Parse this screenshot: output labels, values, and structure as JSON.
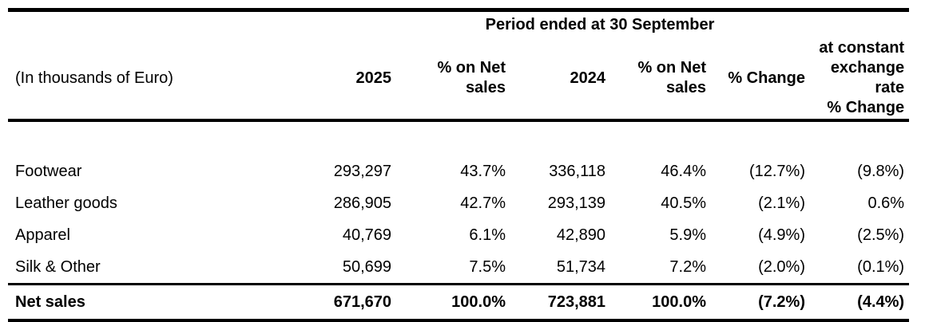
{
  "table": {
    "period_header": "Period ended at 30 September",
    "unit_label": "(In thousands of Euro)",
    "columns": {
      "year_current": "2025",
      "pct_net_sales_current": "% on Net\nsales",
      "year_prior": "2024",
      "pct_net_sales_prior": "% on Net\nsales",
      "pct_change": "% Change",
      "constant_fx_pct_change": "at constant\nexchange\nrate\n% Change"
    },
    "rows": [
      {
        "label": "Footwear",
        "values": [
          "293,297",
          "43.7%",
          "336,118",
          "46.4%",
          "(12.7%)",
          "(9.8%)"
        ]
      },
      {
        "label": "Leather goods",
        "values": [
          "286,905",
          "42.7%",
          "293,139",
          "40.5%",
          "(2.1%)",
          "0.6%"
        ]
      },
      {
        "label": "Apparel",
        "values": [
          "40,769",
          "6.1%",
          "42,890",
          "5.9%",
          "(4.9%)",
          "(2.5%)"
        ]
      },
      {
        "label": "Silk & Other",
        "values": [
          "50,699",
          "7.5%",
          "51,734",
          "7.2%",
          "(2.0%)",
          "(0.1%)"
        ]
      }
    ],
    "total_row": {
      "label": "Net sales",
      "values": [
        "671,670",
        "100.0%",
        "723,881",
        "100.0%",
        "(7.2%)",
        "(4.4%)"
      ]
    },
    "colors": {
      "text": "#000000",
      "background": "#ffffff",
      "border": "#000000"
    }
  }
}
